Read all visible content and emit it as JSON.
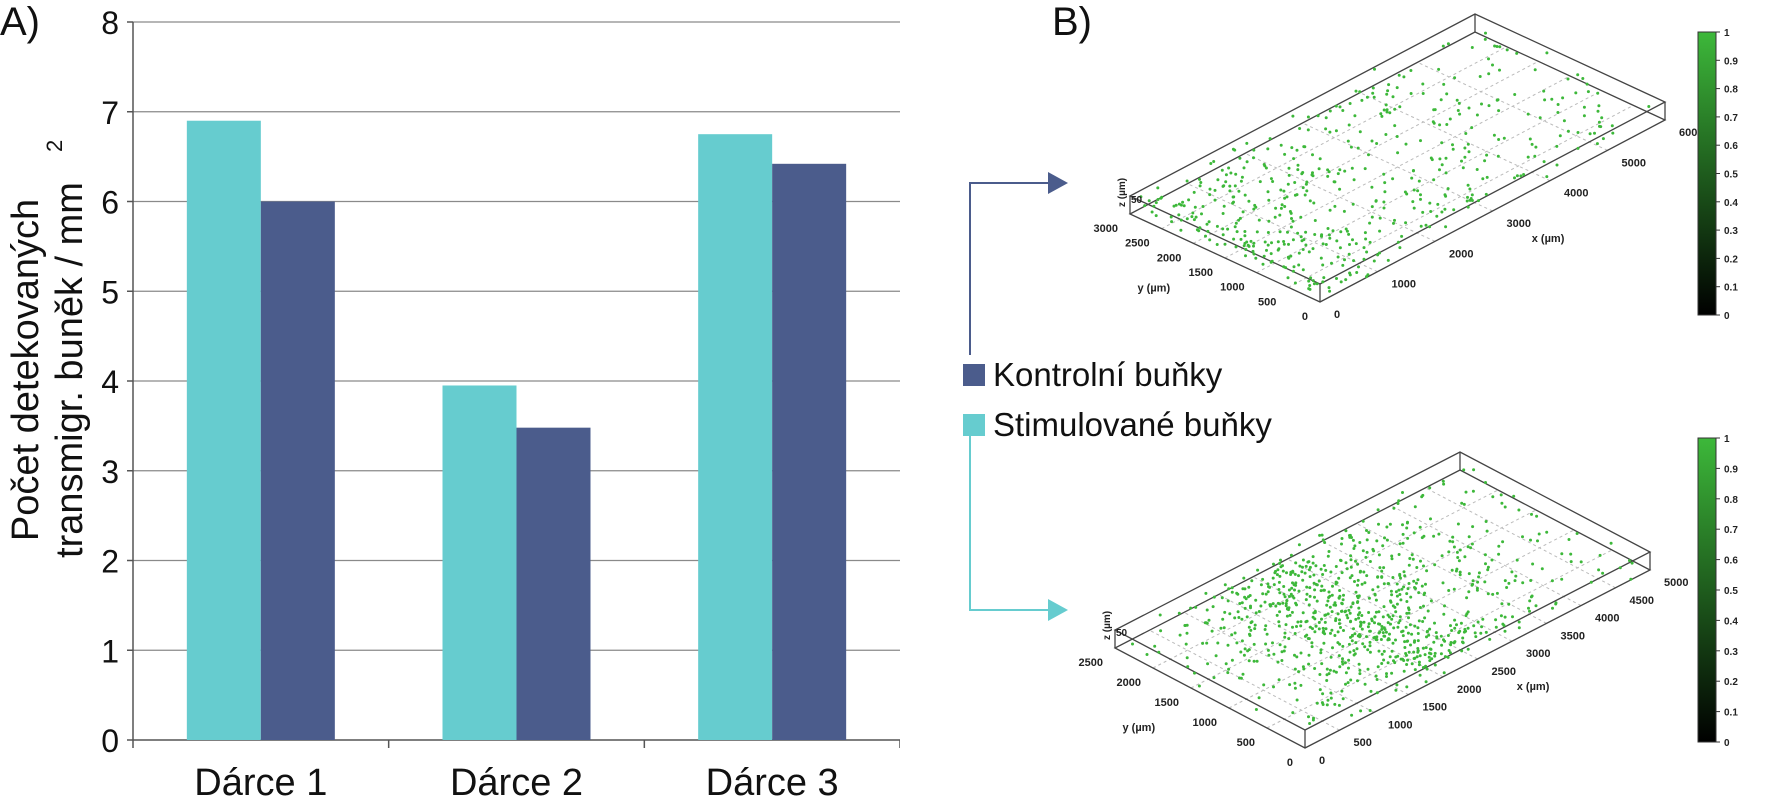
{
  "chart_data": [
    {
      "type": "bar",
      "panel_label": "A)",
      "categories": [
        "Dárce 1",
        "Dárce 2",
        "Dárce 3"
      ],
      "series": [
        {
          "name": "Stimulované buňky",
          "color": "#66CCCF",
          "values": [
            6.9,
            3.95,
            6.75
          ]
        },
        {
          "name": "Kontrolní buňky",
          "color": "#4B5C8C",
          "values": [
            6.0,
            3.48,
            6.42
          ]
        }
      ],
      "ylabel_line1": "Počet detekovaných",
      "ylabel_line2": "transmigr. buněk / mm",
      "ylabel_superscript": "2",
      "ylim": [
        0,
        8
      ],
      "yticks": [
        "0",
        "1",
        "2",
        "3",
        "4",
        "5",
        "6",
        "7",
        "8"
      ],
      "grid": true
    },
    {
      "type": "scatter",
      "panel_label": "B)",
      "subtype": "3d-scatter",
      "plots": [
        {
          "series_ref": "Kontrolní buňky",
          "point_color": "#3DB83A",
          "x_axis_label": "x (µm)",
          "y_axis_label": "y (µm)",
          "z_axis_label": "z (µm)",
          "z_tick": "50",
          "x_ticks": [
            "0",
            "1000",
            "2000",
            "3000",
            "4000",
            "5000",
            "6000"
          ],
          "y_ticks": [
            "0",
            "500",
            "1000",
            "1500",
            "2000",
            "2500",
            "3000"
          ],
          "colorbar_ticks": [
            "0",
            "0.1",
            "0.2",
            "0.3",
            "0.4",
            "0.5",
            "0.6",
            "0.7",
            "0.8",
            "0.9",
            "1"
          ],
          "colorbar_color": "#3DB83A"
        },
        {
          "series_ref": "Stimulované buňky",
          "point_color": "#3DB83A",
          "x_axis_label": "x (µm)",
          "y_axis_label": "y (µm)",
          "z_axis_label": "z (µm)",
          "z_tick": "50",
          "x_ticks": [
            "0",
            "500",
            "1000",
            "1500",
            "2000",
            "2500",
            "3000",
            "3500",
            "4000",
            "4500",
            "5000"
          ],
          "y_ticks": [
            "0",
            "500",
            "1000",
            "1500",
            "2000",
            "2500"
          ],
          "colorbar_ticks": [
            "0",
            "0.1",
            "0.2",
            "0.3",
            "0.4",
            "0.5",
            "0.6",
            "0.7",
            "0.8",
            "0.9",
            "1"
          ],
          "colorbar_color": "#3DB83A"
        }
      ]
    }
  ],
  "legend": {
    "items": [
      {
        "label": "Kontrolní buňky",
        "color": "#4B5C8C"
      },
      {
        "label": "Stimulované buňky",
        "color": "#66CCCF"
      }
    ]
  }
}
